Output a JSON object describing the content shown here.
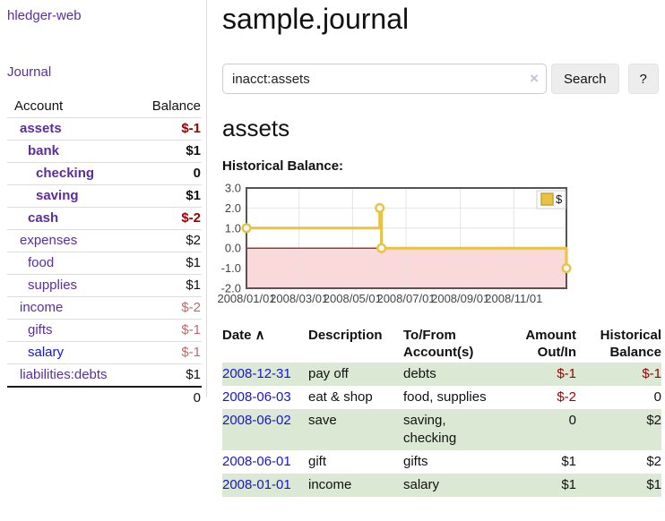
{
  "sidebar": {
    "brand": "hledger-web",
    "nav_journal": "Journal",
    "table_header": {
      "account": "Account",
      "balance": "Balance"
    },
    "accounts": [
      {
        "name": "assets",
        "level": 1,
        "bold": true,
        "link": "purple",
        "balance": "$-1",
        "balance_style": "neg-strong"
      },
      {
        "name": "bank",
        "level": 2,
        "bold": true,
        "link": "purple",
        "balance": "$1",
        "balance_style": "strong"
      },
      {
        "name": "checking",
        "level": 3,
        "bold": true,
        "link": "purple",
        "balance": "0",
        "balance_style": "strong"
      },
      {
        "name": "saving",
        "level": 3,
        "bold": true,
        "link": "purple",
        "balance": "$1",
        "balance_style": "strong"
      },
      {
        "name": "cash",
        "level": 2,
        "bold": true,
        "link": "purple",
        "balance": "$-2",
        "balance_style": "neg-strong"
      },
      {
        "name": "expenses",
        "level": 1,
        "bold": false,
        "link": "purple",
        "balance": "$2",
        "balance_style": "plain"
      },
      {
        "name": "food",
        "level": 2,
        "bold": false,
        "link": "purple",
        "balance": "$1",
        "balance_style": "plain"
      },
      {
        "name": "supplies",
        "level": 2,
        "bold": false,
        "link": "purple",
        "balance": "$1",
        "balance_style": "plain"
      },
      {
        "name": "income",
        "level": 1,
        "bold": false,
        "link": "purple",
        "balance": "$-2",
        "balance_style": "neg-soft"
      },
      {
        "name": "gifts",
        "level": 2,
        "bold": false,
        "link": "purple",
        "balance": "$-1",
        "balance_style": "neg-soft"
      },
      {
        "name": "salary",
        "level": 2,
        "bold": false,
        "link": "blue",
        "balance": "$-1",
        "balance_style": "neg-soft"
      },
      {
        "name": "liabilities:debts",
        "level": 1,
        "bold": false,
        "link": "purple",
        "balance": "$1",
        "balance_style": "plain"
      }
    ],
    "total": "0"
  },
  "main": {
    "title": "sample.journal",
    "search": {
      "value": "inacct:assets",
      "clear_icon": "×",
      "button_label": "Search",
      "help_label": "?"
    },
    "account_heading": "assets",
    "chart_title": "Historical Balance:"
  },
  "register": {
    "sort_icon": "∧",
    "columns": [
      {
        "label": "Date",
        "sort": true,
        "align": "left"
      },
      {
        "label": "Description",
        "align": "left"
      },
      {
        "label": "To/From Account(s)",
        "align": "left"
      },
      {
        "label": "Amount Out/In",
        "align": "right"
      },
      {
        "label": "Historical Balance",
        "align": "right"
      }
    ],
    "rows": [
      {
        "date": "2008-12-31",
        "description": "pay off",
        "accounts": "debts",
        "amount": "$-1",
        "amount_neg": true,
        "balance": "$-1",
        "balance_neg": true,
        "shaded": true
      },
      {
        "date": "2008-06-03",
        "description": "eat & shop",
        "accounts": "food, supplies",
        "amount": "$-2",
        "amount_neg": true,
        "balance": "0",
        "balance_neg": false,
        "shaded": false
      },
      {
        "date": "2008-06-02",
        "description": "save",
        "accounts": "saving, checking",
        "amount": "0",
        "amount_neg": false,
        "balance": "$2",
        "balance_neg": false,
        "shaded": true
      },
      {
        "date": "2008-06-01",
        "description": "gift",
        "accounts": "gifts",
        "amount": "$1",
        "amount_neg": false,
        "balance": "$2",
        "balance_neg": false,
        "shaded": false
      },
      {
        "date": "2008-01-01",
        "description": "income",
        "accounts": "salary",
        "amount": "$1",
        "amount_neg": false,
        "balance": "$1",
        "balance_neg": false,
        "shaded": true
      }
    ]
  },
  "chart_data": {
    "type": "line",
    "title": "Historical Balance:",
    "xlabel": "",
    "ylabel": "",
    "ylim": [
      -2,
      3
    ],
    "y_ticks": [
      -2,
      -1,
      0,
      1,
      2,
      3
    ],
    "x_range_days": [
      0,
      365
    ],
    "x_ticks": [
      {
        "label": "2008/01/01",
        "day": 0
      },
      {
        "label": "2008/03/01",
        "day": 60
      },
      {
        "label": "2008/05/01",
        "day": 121
      },
      {
        "label": "2008/07/01",
        "day": 182
      },
      {
        "label": "2008/09/01",
        "day": 244
      },
      {
        "label": "2008/11/01",
        "day": 305
      }
    ],
    "series": [
      {
        "name": "$",
        "color": "#e8c240",
        "marker_fill": "#ffffff",
        "steps": true,
        "points": [
          {
            "date": "2008-01-01",
            "day": 0,
            "value": 1
          },
          {
            "date": "2008-06-01",
            "day": 152,
            "value": 2
          },
          {
            "date": "2008-06-03",
            "day": 154,
            "value": 0
          },
          {
            "date": "2008-12-31",
            "day": 365,
            "value": -1
          }
        ]
      }
    ],
    "legend": {
      "label": "$",
      "position": "top-right"
    },
    "grid": true,
    "grid_color": "#e4e4e4",
    "border_color": "#545454",
    "zero_line_color": "#7a0000",
    "negative_region_color": "#f9d9d9",
    "tick_label_color": "#444444"
  }
}
